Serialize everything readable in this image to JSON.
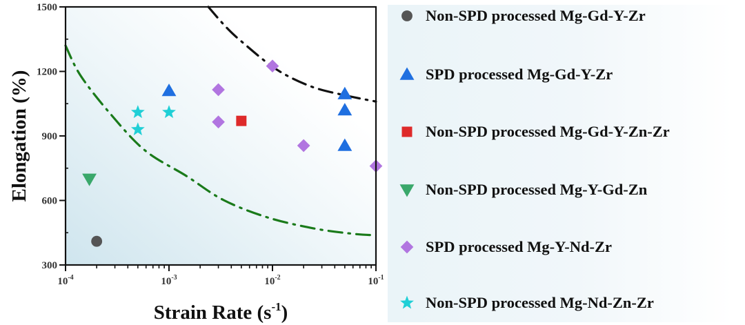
{
  "chart_data": {
    "type": "scatter",
    "title": "",
    "xlabel": "Strain Rate (s",
    "xlabel_sup": "-1",
    "xlabel_close": ")",
    "ylabel": "Elongation (%)",
    "xscale": "log",
    "xlim": [
      0.0001,
      0.1
    ],
    "ylim": [
      300,
      1500
    ],
    "grid": false,
    "x_ticks": [
      {
        "value": 0.0001,
        "base": "10",
        "exp": "-4"
      },
      {
        "value": 0.001,
        "base": "10",
        "exp": "-3"
      },
      {
        "value": 0.01,
        "base": "10",
        "exp": "-2"
      },
      {
        "value": 0.1,
        "base": "10",
        "exp": "-1"
      }
    ],
    "y_ticks": [
      300,
      600,
      900,
      1200,
      1500
    ],
    "y_minor_ticks": [
      450,
      750,
      1050,
      1350
    ],
    "legend_position": "right-outside",
    "series": [
      {
        "name": "Non-SPD processed Mg-Gd-Y-Zr",
        "marker": "circle",
        "color": "#555555",
        "points": [
          [
            0.0002,
            410
          ]
        ]
      },
      {
        "name": "SPD processed Mg-Gd-Y-Zr",
        "marker": "triangle-up",
        "color": "#1f6fe0",
        "points": [
          [
            0.001,
            1110
          ],
          [
            0.05,
            1095
          ],
          [
            0.05,
            1020
          ],
          [
            0.05,
            855
          ]
        ]
      },
      {
        "name": "Non-SPD processed Mg-Gd-Y-Zn-Zr",
        "marker": "square",
        "color": "#de2a2a",
        "points": [
          [
            0.005,
            970
          ]
        ]
      },
      {
        "name": "Non-SPD processed Mg-Y-Gd-Zn",
        "marker": "triangle-down",
        "color": "#3aa86b",
        "points": [
          [
            0.00017,
            700
          ]
        ]
      },
      {
        "name": "SPD processed Mg-Y-Nd-Zr",
        "marker": "diamond",
        "color": "#b175e0",
        "points": [
          [
            0.003,
            1115
          ],
          [
            0.003,
            965
          ],
          [
            0.01,
            1225
          ],
          [
            0.02,
            855
          ],
          [
            0.1,
            760
          ]
        ]
      },
      {
        "name": "Non-SPD processed Mg-Nd-Zn-Zr",
        "marker": "star",
        "color": "#1fcfd6",
        "points": [
          [
            0.0005,
            1010
          ],
          [
            0.0005,
            930
          ],
          [
            0.001,
            1010
          ]
        ]
      }
    ],
    "trend_lines": [
      {
        "name": "upper-bound-trend",
        "style": "dash-dot",
        "color": "#111111",
        "points": [
          [
            0.0024,
            1500
          ],
          [
            0.0035,
            1410
          ],
          [
            0.005,
            1340
          ],
          [
            0.0108,
            1211
          ],
          [
            0.0233,
            1131
          ],
          [
            0.05,
            1089
          ],
          [
            0.1,
            1060
          ]
        ]
      },
      {
        "name": "lower-bound-trend",
        "style": "dash-dot",
        "color": "#1a7a1a",
        "points": [
          [
            0.0001,
            1320
          ],
          [
            0.00014,
            1180
          ],
          [
            0.000271,
            1003
          ],
          [
            0.000585,
            833
          ],
          [
            0.00147,
            714
          ],
          [
            0.00336,
            602
          ],
          [
            0.00898,
            521
          ],
          [
            0.0251,
            470
          ],
          [
            0.06,
            445
          ],
          [
            0.1,
            438
          ]
        ]
      }
    ]
  }
}
